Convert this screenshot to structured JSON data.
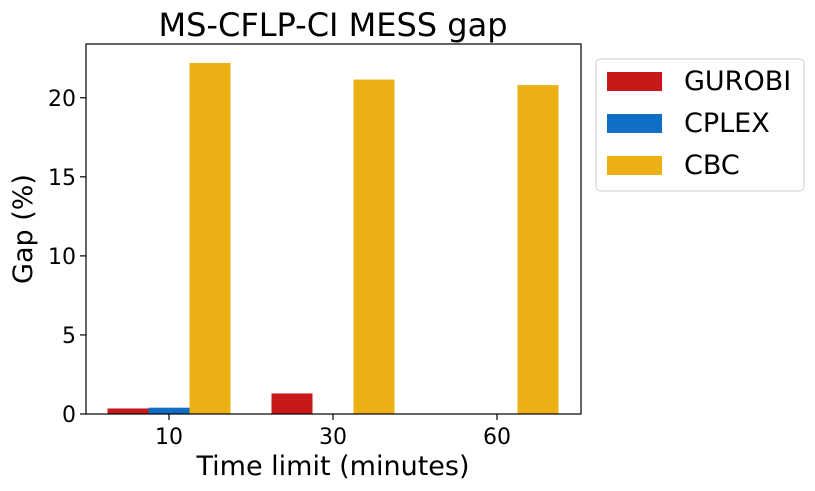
{
  "chart_data": {
    "type": "bar",
    "title": "MS-CFLP-CI MESS gap",
    "xlabel": "Time limit (minutes)",
    "ylabel": "Gap (%)",
    "categories": [
      "10",
      "30",
      "60"
    ],
    "series": [
      {
        "name": "GUROBI",
        "color": "#c8191a",
        "values": [
          0.35,
          1.3,
          0
        ]
      },
      {
        "name": "CPLEX",
        "color": "#0f6fc6",
        "values": [
          0.4,
          0,
          0
        ]
      },
      {
        "name": "CBC",
        "color": "#edb014",
        "values": [
          22.2,
          21.15,
          20.8
        ]
      }
    ],
    "ylim": [
      0,
      23.4
    ],
    "yticks": [
      0,
      5,
      10,
      15,
      20
    ],
    "grid": false,
    "legend_position": "outside-top-right"
  }
}
